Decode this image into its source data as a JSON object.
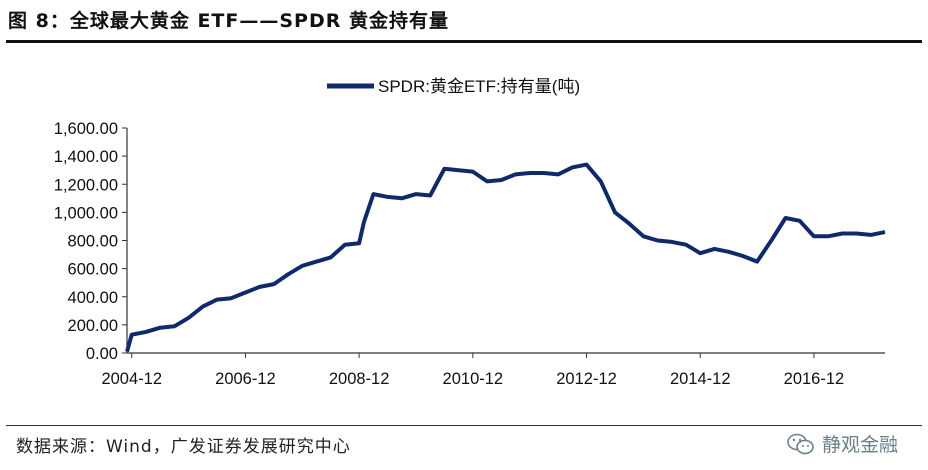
{
  "header": {
    "title": "图 8：全球最大黄金 ETF——SPDR 黄金持有量"
  },
  "footer": {
    "source": "数据来源：Wind，广发证券发展研究中心",
    "watermark": "静观金融",
    "watermark_icon": "wechat-icon"
  },
  "colors": {
    "series": "#0f2a6b",
    "axis": "#333333",
    "rules": "#111111"
  },
  "chart_data": {
    "type": "line",
    "title": "",
    "xlabel": "",
    "ylabel": "",
    "legend": "top-center",
    "grid": false,
    "ylim": [
      0,
      1600
    ],
    "yticks": [
      0,
      200,
      400,
      600,
      800,
      1000,
      1200,
      1400,
      1600
    ],
    "ytick_labels": [
      "0.00",
      "200.00",
      "400.00",
      "600.00",
      "800.00",
      "1,000.00",
      "1,200.00",
      "1,400.00",
      "1,600.00"
    ],
    "xticks": [
      "2004-12",
      "2006-12",
      "2008-12",
      "2010-12",
      "2012-12",
      "2014-12",
      "2016-12"
    ],
    "xlim": [
      "2004-11",
      "2018-03"
    ],
    "series": [
      {
        "name": "SPDR:黄金ETF:持有量(吨)",
        "color": "#0f2a6b",
        "points": [
          [
            "2004-11",
            10
          ],
          [
            "2004-12",
            130
          ],
          [
            "2005-03",
            150
          ],
          [
            "2005-06",
            180
          ],
          [
            "2005-09",
            190
          ],
          [
            "2005-12",
            250
          ],
          [
            "2006-03",
            330
          ],
          [
            "2006-06",
            380
          ],
          [
            "2006-09",
            390
          ],
          [
            "2006-12",
            430
          ],
          [
            "2007-03",
            470
          ],
          [
            "2007-06",
            490
          ],
          [
            "2007-09",
            560
          ],
          [
            "2007-12",
            620
          ],
          [
            "2008-03",
            650
          ],
          [
            "2008-06",
            680
          ],
          [
            "2008-09",
            770
          ],
          [
            "2008-12",
            780
          ],
          [
            "2009-01",
            930
          ],
          [
            "2009-03",
            1130
          ],
          [
            "2009-06",
            1110
          ],
          [
            "2009-09",
            1100
          ],
          [
            "2009-12",
            1130
          ],
          [
            "2010-03",
            1120
          ],
          [
            "2010-06",
            1310
          ],
          [
            "2010-09",
            1300
          ],
          [
            "2010-12",
            1290
          ],
          [
            "2011-03",
            1220
          ],
          [
            "2011-06",
            1230
          ],
          [
            "2011-09",
            1270
          ],
          [
            "2011-12",
            1280
          ],
          [
            "2012-03",
            1280
          ],
          [
            "2012-06",
            1270
          ],
          [
            "2012-09",
            1320
          ],
          [
            "2012-12",
            1340
          ],
          [
            "2013-03",
            1220
          ],
          [
            "2013-06",
            1000
          ],
          [
            "2013-09",
            920
          ],
          [
            "2013-12",
            830
          ],
          [
            "2014-03",
            800
          ],
          [
            "2014-06",
            790
          ],
          [
            "2014-09",
            770
          ],
          [
            "2014-12",
            710
          ],
          [
            "2015-03",
            740
          ],
          [
            "2015-06",
            720
          ],
          [
            "2015-09",
            690
          ],
          [
            "2015-12",
            650
          ],
          [
            "2016-03",
            800
          ],
          [
            "2016-06",
            960
          ],
          [
            "2016-09",
            940
          ],
          [
            "2016-12",
            830
          ],
          [
            "2017-03",
            830
          ],
          [
            "2017-06",
            850
          ],
          [
            "2017-09",
            850
          ],
          [
            "2017-12",
            840
          ],
          [
            "2018-03",
            860
          ]
        ]
      }
    ]
  }
}
